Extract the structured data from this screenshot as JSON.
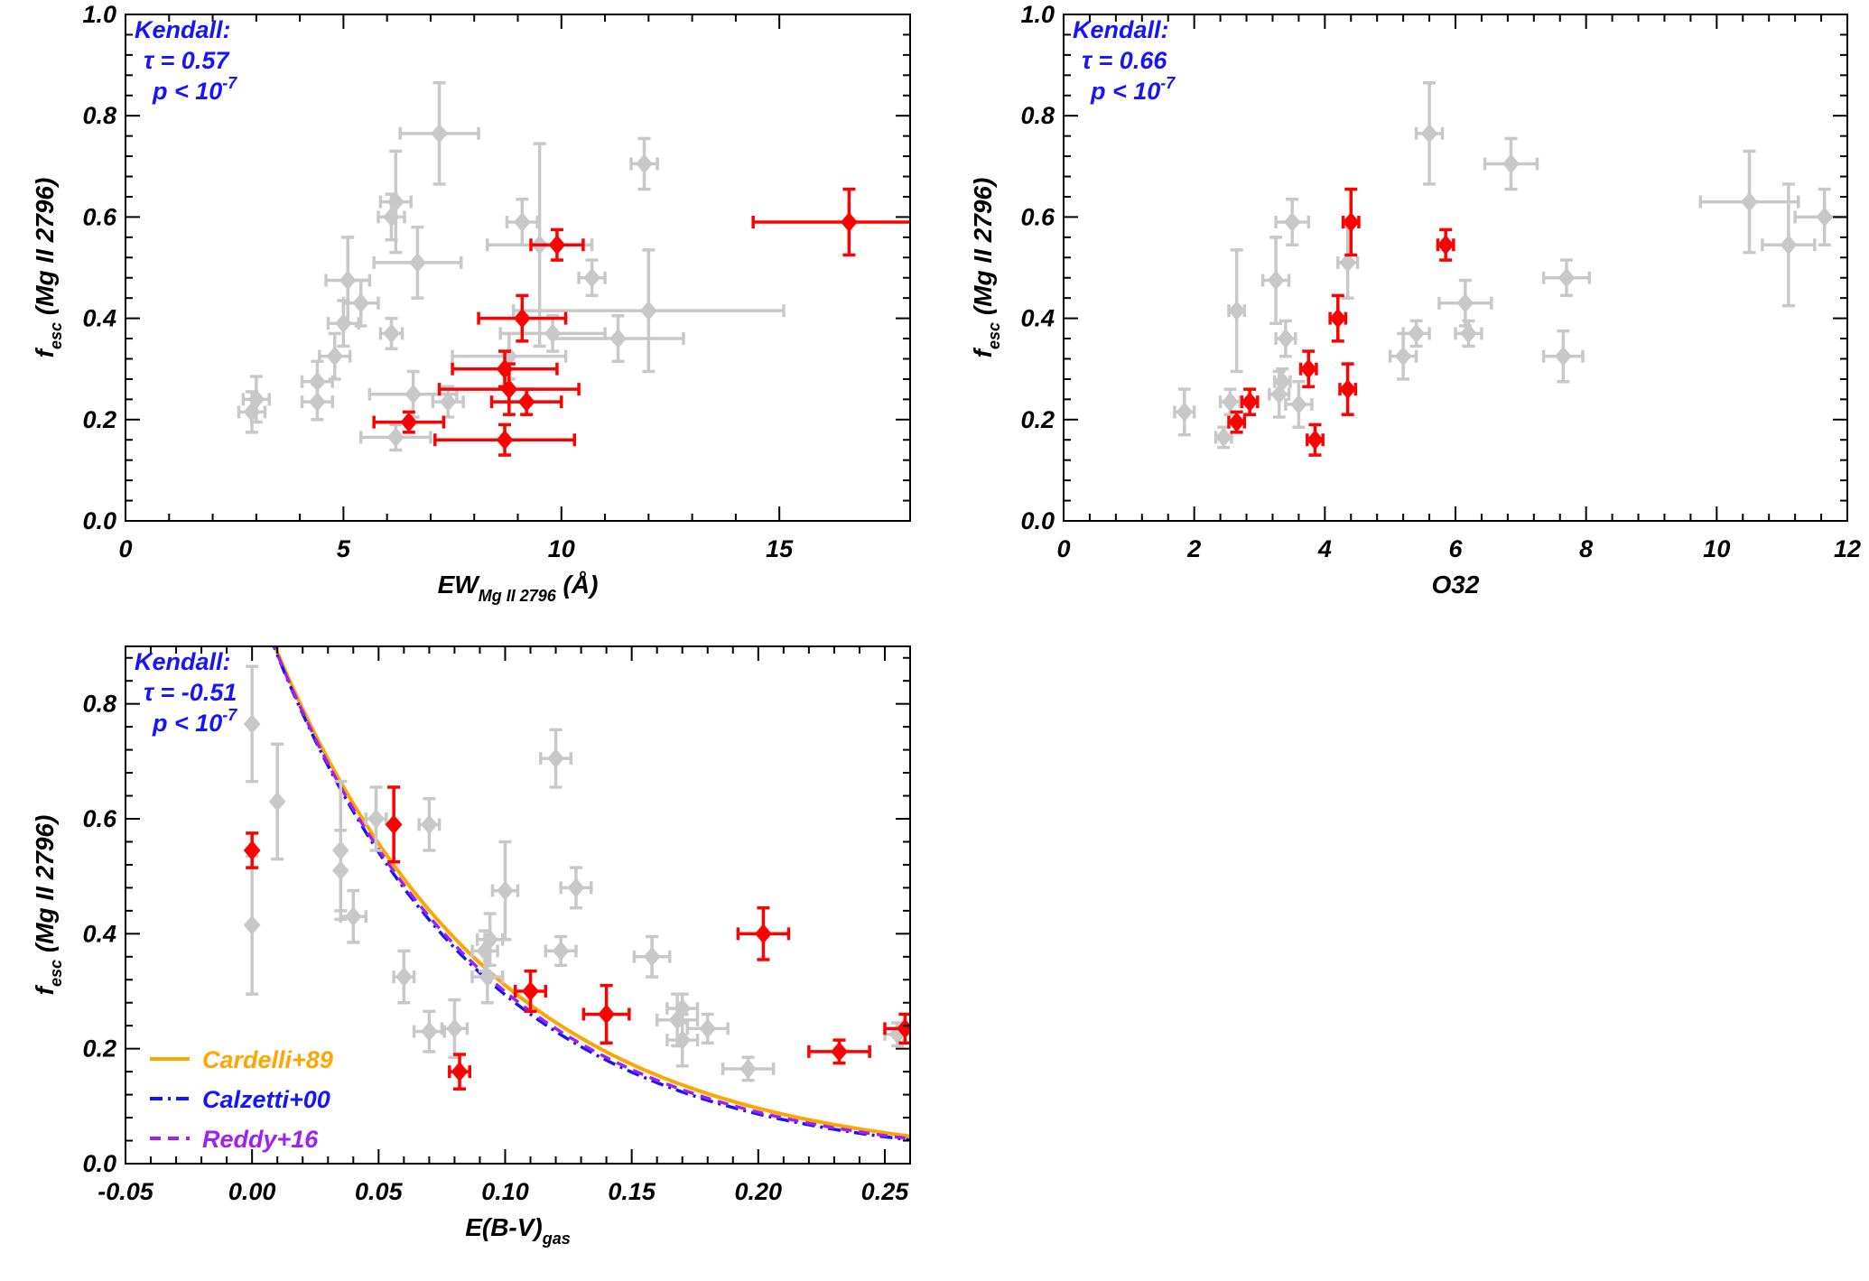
{
  "colors": {
    "highlight": "#ff0000",
    "sample": "#c8c8c8",
    "kendall_text": "#1414ff",
    "cardelli": "#ffa500",
    "calzetti": "#1414ff",
    "reddy": "#a020f0"
  },
  "chart_data": [
    {
      "type": "scatter",
      "id": "panel1",
      "title": "",
      "xlabel": "EW",
      "xlabel_sub": "Mg II 2796",
      "xlabel_tail": " (Å)",
      "ylabel": "f",
      "ylabel_sub": "esc",
      "ylabel_tail": " (Mg II 2796)",
      "xlim": [
        0,
        18
      ],
      "ylim": [
        0,
        1.0
      ],
      "xticks": [
        0,
        5,
        10,
        15
      ],
      "xtick_labels": [
        "0",
        "5",
        "10",
        "15"
      ],
      "yticks": [
        0.0,
        0.2,
        0.4,
        0.6,
        0.8,
        1.0
      ],
      "ytick_labels": [
        "0.0",
        "0.2",
        "0.4",
        "0.6",
        "0.8",
        "1.0"
      ],
      "kendall": {
        "title": "Kendall:",
        "tau": "τ = 0.57",
        "p": "p < 10",
        "p_exp": "-7"
      },
      "series": [
        {
          "name": "sample",
          "color": "#c8c8c8",
          "points": [
            {
              "x": 2.9,
              "y": 0.215,
              "xerr": 0.3,
              "yerr": 0.04
            },
            {
              "x": 3.0,
              "y": 0.24,
              "xerr": 0.3,
              "yerr": 0.045
            },
            {
              "x": 4.4,
              "y": 0.235,
              "xerr": 0.35,
              "yerr": 0.035
            },
            {
              "x": 4.4,
              "y": 0.275,
              "xerr": 0.35,
              "yerr": 0.04
            },
            {
              "x": 4.8,
              "y": 0.325,
              "xerr": 0.35,
              "yerr": 0.045
            },
            {
              "x": 5.0,
              "y": 0.39,
              "xerr": 0.35,
              "yerr": 0.045
            },
            {
              "x": 5.1,
              "y": 0.475,
              "xerr": 0.5,
              "yerr": 0.085
            },
            {
              "x": 5.4,
              "y": 0.43,
              "xerr": 0.4,
              "yerr": 0.045
            },
            {
              "x": 6.1,
              "y": 0.37,
              "xerr": 0.25,
              "yerr": 0.03
            },
            {
              "x": 6.1,
              "y": 0.6,
              "xerr": 0.3,
              "yerr": 0.045
            },
            {
              "x": 6.2,
              "y": 0.63,
              "xerr": 0.35,
              "yerr": 0.1
            },
            {
              "x": 6.2,
              "y": 0.165,
              "xerr": 0.8,
              "yerr": 0.025
            },
            {
              "x": 6.6,
              "y": 0.25,
              "xerr": 1.0,
              "yerr": 0.045
            },
            {
              "x": 6.7,
              "y": 0.51,
              "xerr": 1.0,
              "yerr": 0.07
            },
            {
              "x": 7.2,
              "y": 0.765,
              "xerr": 0.9,
              "yerr": 0.1
            },
            {
              "x": 7.4,
              "y": 0.235,
              "xerr": 0.35,
              "yerr": 0.03
            },
            {
              "x": 8.8,
              "y": 0.325,
              "xerr": 1.3,
              "yerr": 0.045
            },
            {
              "x": 9.1,
              "y": 0.59,
              "xerr": 0.35,
              "yerr": 0.045
            },
            {
              "x": 9.5,
              "y": 0.545,
              "xerr": 1.2,
              "yerr": 0.2
            },
            {
              "x": 9.8,
              "y": 0.37,
              "xerr": 1.2,
              "yerr": 0.035
            },
            {
              "x": 10.7,
              "y": 0.48,
              "xerr": 0.3,
              "yerr": 0.035
            },
            {
              "x": 11.3,
              "y": 0.36,
              "xerr": 1.5,
              "yerr": 0.045
            },
            {
              "x": 11.9,
              "y": 0.705,
              "xerr": 0.3,
              "yerr": 0.05
            },
            {
              "x": 12.0,
              "y": 0.415,
              "xerr": 3.1,
              "yerr": 0.12
            }
          ]
        },
        {
          "name": "highlight",
          "color": "#ff0000",
          "points": [
            {
              "x": 6.5,
              "y": 0.195,
              "xerr": 0.8,
              "yerr": 0.02
            },
            {
              "x": 8.7,
              "y": 0.16,
              "xerr": 1.6,
              "yerr": 0.03
            },
            {
              "x": 8.7,
              "y": 0.3,
              "xerr": 1.2,
              "yerr": 0.035
            },
            {
              "x": 8.8,
              "y": 0.26,
              "xerr": 1.6,
              "yerr": 0.05
            },
            {
              "x": 9.1,
              "y": 0.4,
              "xerr": 1.0,
              "yerr": 0.045
            },
            {
              "x": 9.2,
              "y": 0.235,
              "xerr": 0.8,
              "yerr": 0.025
            },
            {
              "x": 9.9,
              "y": 0.545,
              "xerr": 0.6,
              "yerr": 0.03
            },
            {
              "x": 16.6,
              "y": 0.59,
              "xerr": 2.2,
              "yerr": 0.065
            }
          ]
        }
      ]
    },
    {
      "type": "scatter",
      "id": "panel2",
      "title": "",
      "xlabel": "O32",
      "xlabel_sub": "",
      "xlabel_tail": "",
      "ylabel": "f",
      "ylabel_sub": "esc",
      "ylabel_tail": " (Mg II 2796)",
      "xlim": [
        0,
        12
      ],
      "ylim": [
        0,
        1.0
      ],
      "xticks": [
        0,
        2,
        4,
        6,
        8,
        10,
        12
      ],
      "xtick_labels": [
        "0",
        "2",
        "4",
        "6",
        "8",
        "10",
        "12"
      ],
      "yticks": [
        0.0,
        0.2,
        0.4,
        0.6,
        0.8,
        1.0
      ],
      "ytick_labels": [
        "0.0",
        "0.2",
        "0.4",
        "0.6",
        "0.8",
        "1.0"
      ],
      "kendall": {
        "title": "Kendall:",
        "tau": "τ = 0.66",
        "p": "p < 10",
        "p_exp": "-7"
      },
      "series": [
        {
          "name": "sample",
          "color": "#c8c8c8",
          "points": [
            {
              "x": 1.85,
              "y": 0.215,
              "xerr": 0.15,
              "yerr": 0.045
            },
            {
              "x": 2.45,
              "y": 0.165,
              "xerr": 0.12,
              "yerr": 0.02
            },
            {
              "x": 2.55,
              "y": 0.235,
              "xerr": 0.15,
              "yerr": 0.025
            },
            {
              "x": 2.65,
              "y": 0.415,
              "xerr": 0.12,
              "yerr": 0.12
            },
            {
              "x": 3.25,
              "y": 0.475,
              "xerr": 0.2,
              "yerr": 0.085
            },
            {
              "x": 3.3,
              "y": 0.25,
              "xerr": 0.15,
              "yerr": 0.045
            },
            {
              "x": 3.35,
              "y": 0.275,
              "xerr": 0.12,
              "yerr": 0.025
            },
            {
              "x": 3.4,
              "y": 0.36,
              "xerr": 0.15,
              "yerr": 0.035
            },
            {
              "x": 3.5,
              "y": 0.59,
              "xerr": 0.25,
              "yerr": 0.045
            },
            {
              "x": 3.6,
              "y": 0.23,
              "xerr": 0.2,
              "yerr": 0.045
            },
            {
              "x": 4.35,
              "y": 0.51,
              "xerr": 0.15,
              "yerr": 0.07
            },
            {
              "x": 5.2,
              "y": 0.325,
              "xerr": 0.2,
              "yerr": 0.045
            },
            {
              "x": 5.4,
              "y": 0.37,
              "xerr": 0.2,
              "yerr": 0.025
            },
            {
              "x": 5.6,
              "y": 0.765,
              "xerr": 0.2,
              "yerr": 0.1
            },
            {
              "x": 6.15,
              "y": 0.43,
              "xerr": 0.4,
              "yerr": 0.045
            },
            {
              "x": 6.2,
              "y": 0.37,
              "xerr": 0.2,
              "yerr": 0.025
            },
            {
              "x": 6.85,
              "y": 0.705,
              "xerr": 0.4,
              "yerr": 0.05
            },
            {
              "x": 7.65,
              "y": 0.325,
              "xerr": 0.3,
              "yerr": 0.05
            },
            {
              "x": 7.7,
              "y": 0.48,
              "xerr": 0.35,
              "yerr": 0.035
            },
            {
              "x": 10.5,
              "y": 0.63,
              "xerr": 0.75,
              "yerr": 0.1
            },
            {
              "x": 11.1,
              "y": 0.545,
              "xerr": 0.4,
              "yerr": 0.12
            },
            {
              "x": 11.65,
              "y": 0.6,
              "xerr": 0.45,
              "yerr": 0.055
            }
          ]
        },
        {
          "name": "highlight",
          "color": "#ff0000",
          "points": [
            {
              "x": 2.65,
              "y": 0.195,
              "xerr": 0.12,
              "yerr": 0.02
            },
            {
              "x": 2.85,
              "y": 0.235,
              "xerr": 0.12,
              "yerr": 0.025
            },
            {
              "x": 3.75,
              "y": 0.3,
              "xerr": 0.12,
              "yerr": 0.035
            },
            {
              "x": 3.85,
              "y": 0.16,
              "xerr": 0.12,
              "yerr": 0.03
            },
            {
              "x": 4.2,
              "y": 0.4,
              "xerr": 0.12,
              "yerr": 0.045
            },
            {
              "x": 4.35,
              "y": 0.26,
              "xerr": 0.12,
              "yerr": 0.05
            },
            {
              "x": 4.4,
              "y": 0.59,
              "xerr": 0.12,
              "yerr": 0.065
            },
            {
              "x": 5.85,
              "y": 0.545,
              "xerr": 0.12,
              "yerr": 0.03
            }
          ]
        }
      ]
    },
    {
      "type": "scatter",
      "id": "panel3",
      "title": "",
      "xlabel": "E(B-V)",
      "xlabel_sub": "gas",
      "xlabel_tail": "",
      "ylabel": "f",
      "ylabel_sub": "esc",
      "ylabel_tail": " (Mg II 2796)",
      "xlim": [
        -0.05,
        0.26
      ],
      "ylim": [
        0,
        0.9
      ],
      "xticks": [
        -0.05,
        0.0,
        0.05,
        0.1,
        0.15,
        0.2,
        0.25
      ],
      "xtick_labels": [
        "-0.05",
        "0.00",
        "0.05",
        "0.10",
        "0.15",
        "0.20",
        "0.25"
      ],
      "yticks": [
        0.0,
        0.2,
        0.4,
        0.6,
        0.8
      ],
      "ytick_labels": [
        "0.0",
        "0.2",
        "0.4",
        "0.6",
        "0.8"
      ],
      "kendall": {
        "title": "Kendall:",
        "tau": "τ = -0.51",
        "p": "p < 10",
        "p_exp": "-7"
      },
      "series": [
        {
          "name": "sample",
          "color": "#c8c8c8",
          "points": [
            {
              "x": 0.0,
              "y": 0.765,
              "xerr": 0.0,
              "yerr": 0.1
            },
            {
              "x": 0.0,
              "y": 0.415,
              "xerr": 0.0,
              "yerr": 0.12
            },
            {
              "x": 0.01,
              "y": 0.63,
              "xerr": 0.0,
              "yerr": 0.1
            },
            {
              "x": 0.035,
              "y": 0.545,
              "xerr": 0.0,
              "yerr": 0.12
            },
            {
              "x": 0.035,
              "y": 0.51,
              "xerr": 0.0,
              "yerr": 0.07
            },
            {
              "x": 0.04,
              "y": 0.43,
              "xerr": 0.005,
              "yerr": 0.045
            },
            {
              "x": 0.049,
              "y": 0.6,
              "xerr": 0.004,
              "yerr": 0.055
            },
            {
              "x": 0.06,
              "y": 0.325,
              "xerr": 0.004,
              "yerr": 0.045
            },
            {
              "x": 0.07,
              "y": 0.59,
              "xerr": 0.004,
              "yerr": 0.045
            },
            {
              "x": 0.07,
              "y": 0.23,
              "xerr": 0.006,
              "yerr": 0.035
            },
            {
              "x": 0.08,
              "y": 0.235,
              "xerr": 0.005,
              "yerr": 0.05
            },
            {
              "x": 0.092,
              "y": 0.37,
              "xerr": 0.005,
              "yerr": 0.035
            },
            {
              "x": 0.093,
              "y": 0.325,
              "xerr": 0.006,
              "yerr": 0.045
            },
            {
              "x": 0.094,
              "y": 0.39,
              "xerr": 0.005,
              "yerr": 0.045
            },
            {
              "x": 0.1,
              "y": 0.475,
              "xerr": 0.005,
              "yerr": 0.085
            },
            {
              "x": 0.12,
              "y": 0.705,
              "xerr": 0.006,
              "yerr": 0.05
            },
            {
              "x": 0.122,
              "y": 0.37,
              "xerr": 0.006,
              "yerr": 0.025
            },
            {
              "x": 0.128,
              "y": 0.48,
              "xerr": 0.006,
              "yerr": 0.035
            },
            {
              "x": 0.158,
              "y": 0.36,
              "xerr": 0.007,
              "yerr": 0.035
            },
            {
              "x": 0.168,
              "y": 0.25,
              "xerr": 0.008,
              "yerr": 0.045
            },
            {
              "x": 0.17,
              "y": 0.27,
              "xerr": 0.006,
              "yerr": 0.025
            },
            {
              "x": 0.17,
              "y": 0.215,
              "xerr": 0.006,
              "yerr": 0.045
            },
            {
              "x": 0.18,
              "y": 0.235,
              "xerr": 0.008,
              "yerr": 0.025
            },
            {
              "x": 0.196,
              "y": 0.165,
              "xerr": 0.01,
              "yerr": 0.02
            },
            {
              "x": 0.255,
              "y": 0.225,
              "xerr": 0.005,
              "yerr": 0.02
            }
          ]
        },
        {
          "name": "highlight",
          "color": "#ff0000",
          "points": [
            {
              "x": 0.0,
              "y": 0.545,
              "xerr": 0.0,
              "yerr": 0.03
            },
            {
              "x": 0.056,
              "y": 0.59,
              "xerr": 0.0,
              "yerr": 0.065
            },
            {
              "x": 0.082,
              "y": 0.16,
              "xerr": 0.004,
              "yerr": 0.03
            },
            {
              "x": 0.11,
              "y": 0.3,
              "xerr": 0.006,
              "yerr": 0.035
            },
            {
              "x": 0.14,
              "y": 0.26,
              "xerr": 0.009,
              "yerr": 0.05
            },
            {
              "x": 0.202,
              "y": 0.4,
              "xerr": 0.01,
              "yerr": 0.045
            },
            {
              "x": 0.232,
              "y": 0.195,
              "xerr": 0.012,
              "yerr": 0.02
            },
            {
              "x": 0.258,
              "y": 0.235,
              "xerr": 0.008,
              "yerr": 0.025
            }
          ]
        }
      ],
      "curves": [
        {
          "name": "Cardelli+89",
          "style": "solid",
          "color": "#ffa500",
          "k": 12.7
        },
        {
          "name": "Calzetti+00",
          "style": "dashdot",
          "color": "#1414ff",
          "k": 13.3
        },
        {
          "name": "Reddy+16",
          "style": "dashed",
          "color": "#a020f0",
          "k": 13.1
        }
      ],
      "legend_position": "bottom-left"
    }
  ]
}
